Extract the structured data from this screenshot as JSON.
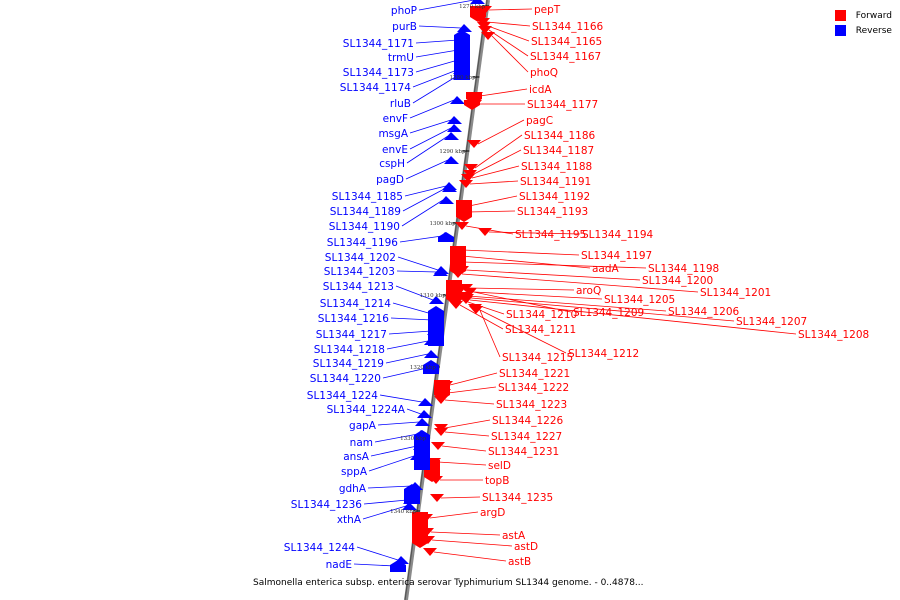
{
  "legend": {
    "forward": {
      "label": "Forward",
      "color": "#ff0000"
    },
    "reverse": {
      "label": "Reverse",
      "color": "#0000ff"
    }
  },
  "caption": "Salmonella enterica subsp. enterica serovar Typhimurium SL1344 genome. - 0..4878...",
  "kbp_marks": [
    "1270 kbp",
    "1280 kbp",
    "1290 kbp",
    "1300 kbp",
    "1310 kbp",
    "1320 kbp",
    "1330 kbp",
    "1340 kbp"
  ],
  "reverse_genes": [
    "phoP",
    "purB",
    "SL1344_1171",
    "trmU",
    "SL1344_1173",
    "SL1344_1174",
    "rluB",
    "envF",
    "msgA",
    "envE",
    "cspH",
    "pagD",
    "SL1344_1185",
    "SL1344_1189",
    "SL1344_1190",
    "SL1344_1196",
    "SL1344_1202",
    "SL1344_1203",
    "SL1344_1213",
    "SL1344_1214",
    "SL1344_1216",
    "SL1344_1217",
    "SL1344_1218",
    "SL1344_1219",
    "SL1344_1220",
    "SL1344_1224",
    "SL1344_1224A",
    "gapA",
    "nam",
    "ansA",
    "sppA",
    "gdhA",
    "SL1344_1236",
    "xthA",
    "SL1344_1244",
    "nadE"
  ],
  "forward_genes": [
    "pepT",
    "SL1344_1166",
    "SL1344_1165",
    "SL1344_1167",
    "phoQ",
    "icdA",
    "SL1344_1177",
    "pagC",
    "SL1344_1186",
    "SL1344_1187",
    "SL1344_1188",
    "SL1344_1191",
    "SL1344_1192",
    "SL1344_1193",
    "SL1344_1195",
    "SL1344_1194",
    "SL1344_1197",
    "aadA",
    "SL1344_1198",
    "SL1344_1200",
    "SL1344_1201",
    "aroQ",
    "SL1344_1205",
    "SL1344_1209",
    "SL1344_1206",
    "SL1344_1207",
    "SL1344_1208",
    "SL1344_1210",
    "SL1344_1211",
    "SL1344_1215",
    "SL1344_1212",
    "SL1344_1221",
    "SL1344_1222",
    "SL1344_1223",
    "SL1344_1226",
    "SL1344_1227",
    "SL1344_1231",
    "selD",
    "topB",
    "SL1344_1235",
    "argD",
    "astA",
    "astD",
    "astB"
  ]
}
